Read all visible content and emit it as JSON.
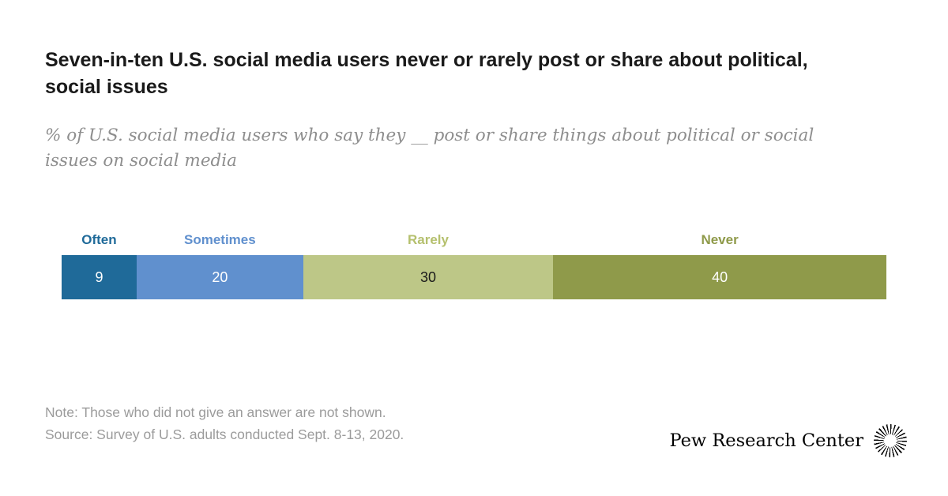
{
  "header": {
    "title": "Seven-in-ten U.S. social media users never or rarely post or share about political, social issues",
    "subtitle": "% of U.S. social media users who say they __ post or share things about political or social issues on social media"
  },
  "chart_data": {
    "type": "bar",
    "stacked": true,
    "orientation": "horizontal",
    "title": "Seven-in-ten U.S. social media users never or rarely post or share about political, social issues",
    "units": "%",
    "categories": [
      "Often",
      "Sometimes",
      "Rarely",
      "Never"
    ],
    "values": [
      9,
      20,
      30,
      40
    ],
    "segment_colors": [
      "#1f6a99",
      "#6090ce",
      "#bdc787",
      "#8f9a4a"
    ],
    "label_colors": [
      "#1f6a99",
      "#6090ce",
      "#b5c06e",
      "#8f9a4a"
    ],
    "value_text_colors": [
      "#ffffff",
      "#ffffff",
      "#1a1a1a",
      "#ffffff"
    ],
    "legend_position": "above-segments",
    "grid": false
  },
  "footer": {
    "note": "Note: Those who did not give an answer are not shown.",
    "source": "Source: Survey of U.S. adults conducted Sept. 8-13, 2020.",
    "brand": "Pew Research Center"
  }
}
